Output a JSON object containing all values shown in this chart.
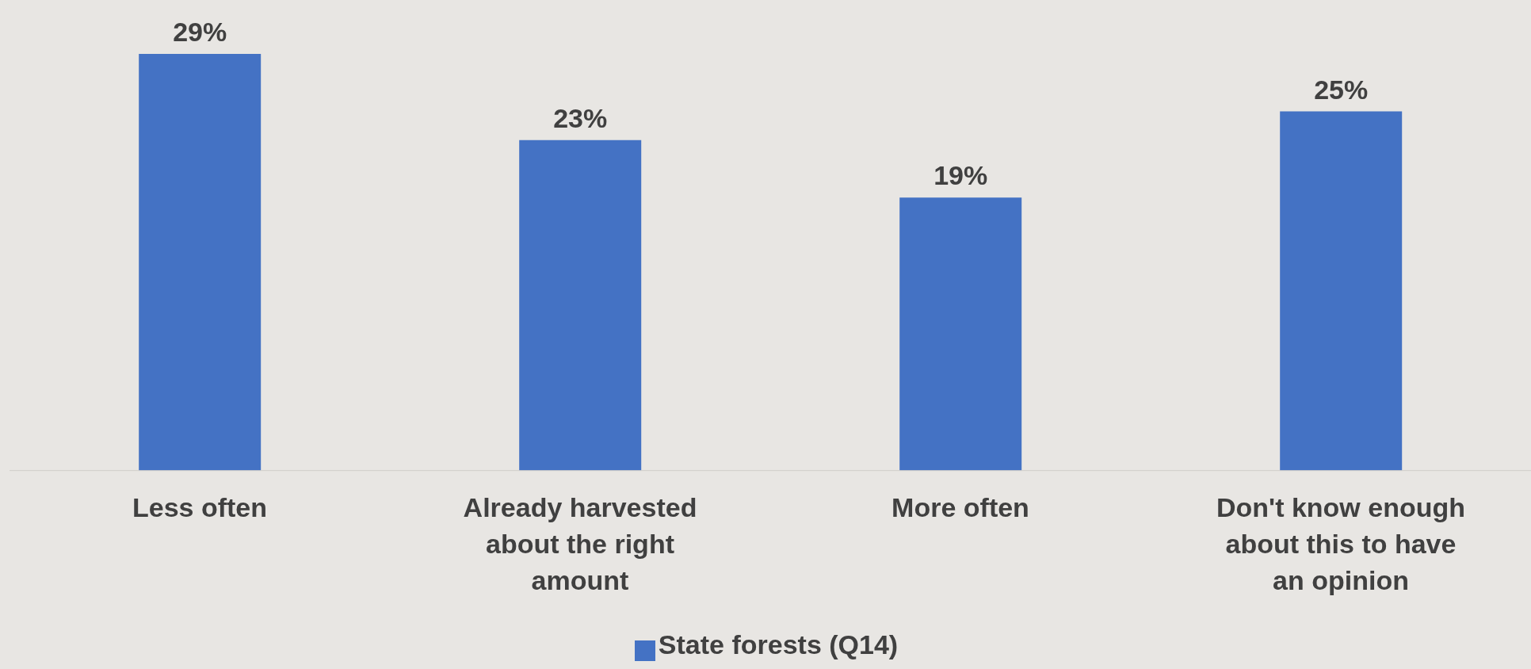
{
  "chart_data": {
    "type": "bar",
    "categories": [
      "Less often",
      "Already harvested about the right amount",
      "More often",
      "Don't know enough about this to have an opinion"
    ],
    "series": [
      {
        "name": "State forests (Q14)",
        "color": "#4472c4",
        "values": [
          29,
          23,
          19,
          25
        ],
        "value_labels": [
          "29%",
          "23%",
          "19%",
          "25%"
        ]
      }
    ],
    "legend": "bottom",
    "grid": false
  }
}
